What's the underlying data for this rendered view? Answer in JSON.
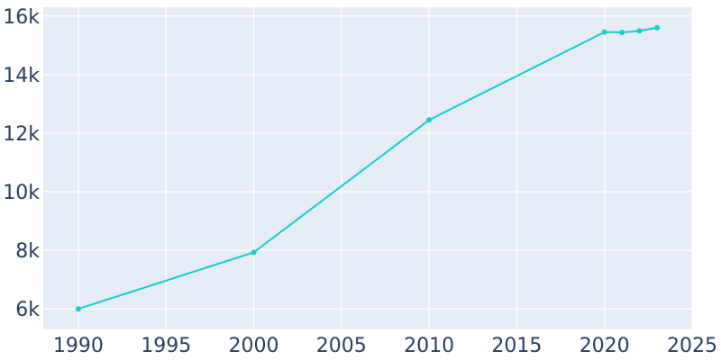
{
  "chart_data": {
    "type": "line",
    "title": "",
    "xlabel": "",
    "ylabel": "",
    "xlim": [
      1988,
      2025
    ],
    "ylim": [
      5300,
      16300
    ],
    "x_ticks": [
      1990,
      1995,
      2000,
      2005,
      2010,
      2015,
      2020,
      2025
    ],
    "x_tick_labels": [
      "1990",
      "1995",
      "2000",
      "2005",
      "2010",
      "2015",
      "2020",
      "2025"
    ],
    "y_ticks": [
      6000,
      8000,
      10000,
      12000,
      14000,
      16000
    ],
    "y_tick_labels": [
      "6k",
      "8k",
      "10k",
      "12k",
      "14k",
      "16k"
    ],
    "grid": true,
    "series": [
      {
        "x": [
          1990,
          2000,
          2010,
          2020,
          2021,
          2022,
          2023
        ],
        "y": [
          6000,
          7930,
          12450,
          15450,
          15440,
          15490,
          15600
        ]
      }
    ],
    "colors": {
      "line": "#17cdcd",
      "plot_background": "#e5ecf6",
      "grid": "#ffffff",
      "tick_text": "#2a3f5f"
    }
  }
}
